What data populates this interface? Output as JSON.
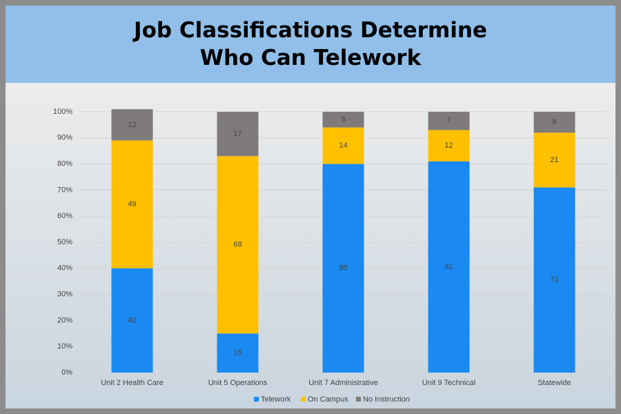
{
  "chart_data": {
    "type": "stacked_bar",
    "title": "Job Classifications Determine Who Can Telework",
    "categories": [
      "Unit 2 Health Care",
      "Unit 5 Operations",
      "Unit 7 Administrative",
      "Unit 9 Technical",
      "Statewide"
    ],
    "series": [
      {
        "name": "Telework",
        "color": "#1a89f2",
        "values": [
          40,
          15,
          80,
          81,
          71
        ]
      },
      {
        "name": "On Campus",
        "color": "#ffc000",
        "values": [
          49,
          68,
          14,
          12,
          21
        ]
      },
      {
        "name": "No Instruction",
        "color": "#7f7b7b",
        "values": [
          12,
          17,
          6,
          7,
          8
        ]
      }
    ],
    "ylim": [
      0,
      100
    ],
    "yticks": [
      {
        "value": 0,
        "label": "0%"
      },
      {
        "value": 10,
        "label": "10%"
      },
      {
        "value": 20,
        "label": "20%"
      },
      {
        "value": 30,
        "label": "30%"
      },
      {
        "value": 40,
        "label": "40%"
      },
      {
        "value": 50,
        "label": "50%"
      },
      {
        "value": 60,
        "label": "60%"
      },
      {
        "value": 70,
        "label": "70%"
      },
      {
        "value": 80,
        "label": "80%"
      },
      {
        "value": 90,
        "label": "90%"
      },
      {
        "value": 100,
        "label": "100%"
      }
    ],
    "grid": true,
    "legend": "bottom"
  }
}
